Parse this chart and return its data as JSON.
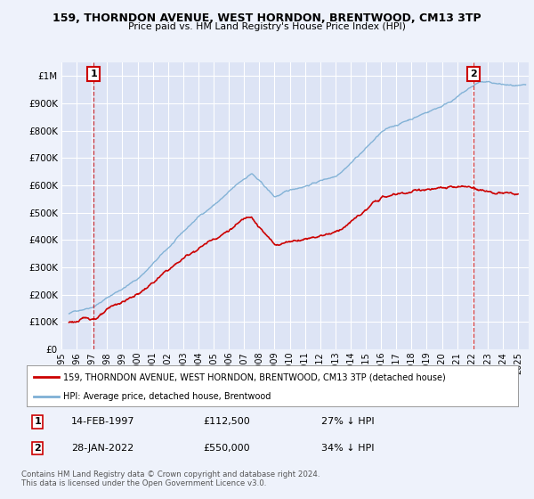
{
  "title_line1": "159, THORNDON AVENUE, WEST HORNDON, BRENTWOOD, CM13 3TP",
  "title_line2": "Price paid vs. HM Land Registry's House Price Index (HPI)",
  "background_color": "#eef2fb",
  "plot_bg_color": "#dde4f5",
  "grid_color": "#ffffff",
  "ytick_values": [
    0,
    100000,
    200000,
    300000,
    400000,
    500000,
    600000,
    700000,
    800000,
    900000,
    1000000
  ],
  "ylim": [
    0,
    1050000
  ],
  "xlim_start": 1995.3,
  "xlim_end": 2025.7,
  "xtick_years": [
    1995,
    1996,
    1997,
    1998,
    1999,
    2000,
    2001,
    2002,
    2003,
    2004,
    2005,
    2006,
    2007,
    2008,
    2009,
    2010,
    2011,
    2012,
    2013,
    2014,
    2015,
    2016,
    2017,
    2018,
    2019,
    2020,
    2021,
    2022,
    2023,
    2024,
    2025
  ],
  "hpi_color": "#7eb0d5",
  "price_color": "#cc0000",
  "marker1_year": 1997.12,
  "marker1_value": 112500,
  "marker1_label": "1",
  "marker1_date": "14-FEB-1997",
  "marker1_price": "£112,500",
  "marker1_hpi": "27% ↓ HPI",
  "marker2_year": 2022.07,
  "marker2_value": 550000,
  "marker2_label": "2",
  "marker2_date": "28-JAN-2022",
  "marker2_price": "£550,000",
  "marker2_hpi": "34% ↓ HPI",
  "legend_line1": "159, THORNDON AVENUE, WEST HORNDON, BRENTWOOD, CM13 3TP (detached house)",
  "legend_line2": "HPI: Average price, detached house, Brentwood",
  "footer": "Contains HM Land Registry data © Crown copyright and database right 2024.\nThis data is licensed under the Open Government Licence v3.0."
}
